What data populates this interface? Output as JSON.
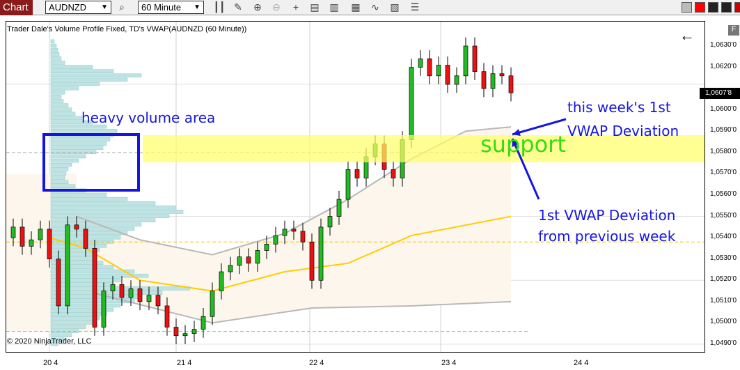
{
  "toolbar": {
    "tab": "Chart",
    "instrument": "AUDNZD",
    "interval": "60 Minute",
    "icons": [
      "search-icon",
      "bar-type-icon",
      "pencil-icon",
      "zoom-in-icon",
      "zoom-out-icon",
      "crosshair-icon",
      "properties-icon",
      "data-box-icon",
      "indicators-icon",
      "strategies-icon",
      "templates-icon",
      "list-icon"
    ]
  },
  "chart": {
    "indicator_title": "Trader Dale's Volume Profile Fixed, TD's VWAP(AUDNZD (60 Minute))",
    "copyright": "© 2020 NinjaTrader, LLC",
    "last_price": "1,0607'8",
    "f_button": "F",
    "back_arrow": "←",
    "price_labels": [
      "1,0630'0",
      "1,0620'0",
      "1,0600'0",
      "1,0590'0",
      "1,0580'0",
      "1,0570'0",
      "1,0560'0",
      "1,0550'0",
      "1,0540'0",
      "1,0530'0",
      "1,0520'0",
      "1,0510'0",
      "1,0500'0",
      "1,0490'0"
    ],
    "date_labels": [
      "20 4",
      "21 4",
      "22 4",
      "23 4",
      "24 4"
    ]
  },
  "annotations": {
    "heavy_volume": "heavy volume area",
    "support": "support",
    "this_week_1": "this week's 1st",
    "this_week_2": "VWAP Deviation",
    "prev_week_1": "1st VWAP Deviation",
    "prev_week_2": "from previous week"
  },
  "colors": {
    "up": "#22bb22",
    "down": "#ee1111",
    "vwap": "#ffcc00",
    "band": "#b8b8b8",
    "profile": "#bfe3e3",
    "annotation": "#1515e0",
    "support": "#33dd11",
    "highlight": "#ffff66"
  },
  "chart_data": {
    "type": "candlestick",
    "ylim": [
      1.0486,
      1.0642
    ],
    "closes": [
      1.0545,
      1.0536,
      1.0539,
      1.0544,
      1.053,
      1.0508,
      1.0546,
      1.0544,
      1.0535,
      1.0498,
      1.0515,
      1.0518,
      1.0512,
      1.0516,
      1.051,
      1.0513,
      1.0508,
      1.0498,
      1.0494,
      1.0495,
      1.0497,
      1.0503,
      1.0515,
      1.0524,
      1.0527,
      1.0531,
      1.0528,
      1.0534,
      1.0537,
      1.0541,
      1.0544,
      1.0543,
      1.0538,
      1.052,
      1.0545,
      1.055,
      1.0558,
      1.0572,
      1.0568,
      1.0578,
      1.0584,
      1.0572,
      1.0568,
      1.0586,
      1.062,
      1.0624,
      1.0616,
      1.0621,
      1.0612,
      1.0616,
      1.063,
      1.0618,
      1.061,
      1.0617,
      1.0616,
      1.0608
    ],
    "vwap": [
      [
        4,
        1.054
      ],
      [
        8,
        1.0535
      ],
      [
        14,
        1.052
      ],
      [
        22,
        1.0515
      ],
      [
        30,
        1.0524
      ],
      [
        37,
        1.0528
      ],
      [
        44,
        1.0541
      ],
      [
        55,
        1.055
      ]
    ],
    "upper_band": [
      [
        7,
        1.055
      ],
      [
        14,
        1.0539
      ],
      [
        22,
        1.0532
      ],
      [
        30,
        1.0542
      ],
      [
        37,
        1.0558
      ],
      [
        44,
        1.0577
      ],
      [
        50,
        1.059
      ],
      [
        55,
        1.0592
      ]
    ],
    "lower_band": [
      [
        9,
        1.0514
      ],
      [
        22,
        1.05
      ],
      [
        33,
        1.0507
      ],
      [
        44,
        1.0508
      ],
      [
        55,
        1.051
      ]
    ],
    "volume_profile": {
      "from": 1.0632,
      "step": -0.0002,
      "values": [
        5,
        8,
        10,
        12,
        15,
        20,
        60,
        90,
        130,
        110,
        70,
        40,
        20,
        15,
        18,
        25,
        30,
        35,
        45,
        60,
        80,
        95,
        90,
        85,
        80,
        75,
        65,
        50,
        40,
        30,
        25,
        22,
        20,
        25,
        35,
        50,
        80,
        110,
        150,
        180,
        190,
        170,
        150,
        130,
        120,
        110,
        100,
        90,
        80,
        70,
        60,
        60,
        75,
        90,
        120,
        140,
        100,
        90,
        200,
        160,
        130,
        120,
        100,
        90,
        80,
        70,
        60,
        50,
        40,
        30,
        20,
        10
      ]
    },
    "poc_dashed": [
      1.058,
      1.0538,
      1.0496
    ]
  }
}
